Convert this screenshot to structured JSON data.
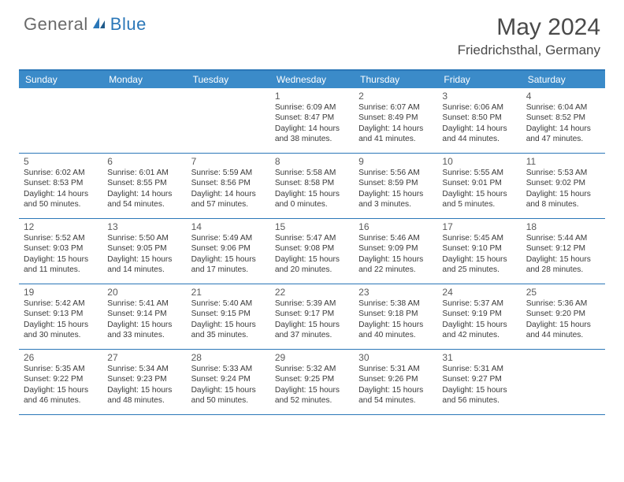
{
  "brand": {
    "general": "General",
    "blue": "Blue"
  },
  "title": "May 2024",
  "location": "Friedrichsthal, Germany",
  "colors": {
    "header_bg": "#3b8bc9",
    "border": "#2b77b8",
    "text_dark": "#3a3a3a",
    "text_gray": "#5a5a5a",
    "logo_gray": "#6a6a6a",
    "logo_blue": "#2b77b8"
  },
  "day_names": [
    "Sunday",
    "Monday",
    "Tuesday",
    "Wednesday",
    "Thursday",
    "Friday",
    "Saturday"
  ],
  "weeks": [
    [
      null,
      null,
      null,
      {
        "n": "1",
        "sr": "6:09 AM",
        "ss": "8:47 PM",
        "dl": "14 hours and 38 minutes."
      },
      {
        "n": "2",
        "sr": "6:07 AM",
        "ss": "8:49 PM",
        "dl": "14 hours and 41 minutes."
      },
      {
        "n": "3",
        "sr": "6:06 AM",
        "ss": "8:50 PM",
        "dl": "14 hours and 44 minutes."
      },
      {
        "n": "4",
        "sr": "6:04 AM",
        "ss": "8:52 PM",
        "dl": "14 hours and 47 minutes."
      }
    ],
    [
      {
        "n": "5",
        "sr": "6:02 AM",
        "ss": "8:53 PM",
        "dl": "14 hours and 50 minutes."
      },
      {
        "n": "6",
        "sr": "6:01 AM",
        "ss": "8:55 PM",
        "dl": "14 hours and 54 minutes."
      },
      {
        "n": "7",
        "sr": "5:59 AM",
        "ss": "8:56 PM",
        "dl": "14 hours and 57 minutes."
      },
      {
        "n": "8",
        "sr": "5:58 AM",
        "ss": "8:58 PM",
        "dl": "15 hours and 0 minutes."
      },
      {
        "n": "9",
        "sr": "5:56 AM",
        "ss": "8:59 PM",
        "dl": "15 hours and 3 minutes."
      },
      {
        "n": "10",
        "sr": "5:55 AM",
        "ss": "9:01 PM",
        "dl": "15 hours and 5 minutes."
      },
      {
        "n": "11",
        "sr": "5:53 AM",
        "ss": "9:02 PM",
        "dl": "15 hours and 8 minutes."
      }
    ],
    [
      {
        "n": "12",
        "sr": "5:52 AM",
        "ss": "9:03 PM",
        "dl": "15 hours and 11 minutes."
      },
      {
        "n": "13",
        "sr": "5:50 AM",
        "ss": "9:05 PM",
        "dl": "15 hours and 14 minutes."
      },
      {
        "n": "14",
        "sr": "5:49 AM",
        "ss": "9:06 PM",
        "dl": "15 hours and 17 minutes."
      },
      {
        "n": "15",
        "sr": "5:47 AM",
        "ss": "9:08 PM",
        "dl": "15 hours and 20 minutes."
      },
      {
        "n": "16",
        "sr": "5:46 AM",
        "ss": "9:09 PM",
        "dl": "15 hours and 22 minutes."
      },
      {
        "n": "17",
        "sr": "5:45 AM",
        "ss": "9:10 PM",
        "dl": "15 hours and 25 minutes."
      },
      {
        "n": "18",
        "sr": "5:44 AM",
        "ss": "9:12 PM",
        "dl": "15 hours and 28 minutes."
      }
    ],
    [
      {
        "n": "19",
        "sr": "5:42 AM",
        "ss": "9:13 PM",
        "dl": "15 hours and 30 minutes."
      },
      {
        "n": "20",
        "sr": "5:41 AM",
        "ss": "9:14 PM",
        "dl": "15 hours and 33 minutes."
      },
      {
        "n": "21",
        "sr": "5:40 AM",
        "ss": "9:15 PM",
        "dl": "15 hours and 35 minutes."
      },
      {
        "n": "22",
        "sr": "5:39 AM",
        "ss": "9:17 PM",
        "dl": "15 hours and 37 minutes."
      },
      {
        "n": "23",
        "sr": "5:38 AM",
        "ss": "9:18 PM",
        "dl": "15 hours and 40 minutes."
      },
      {
        "n": "24",
        "sr": "5:37 AM",
        "ss": "9:19 PM",
        "dl": "15 hours and 42 minutes."
      },
      {
        "n": "25",
        "sr": "5:36 AM",
        "ss": "9:20 PM",
        "dl": "15 hours and 44 minutes."
      }
    ],
    [
      {
        "n": "26",
        "sr": "5:35 AM",
        "ss": "9:22 PM",
        "dl": "15 hours and 46 minutes."
      },
      {
        "n": "27",
        "sr": "5:34 AM",
        "ss": "9:23 PM",
        "dl": "15 hours and 48 minutes."
      },
      {
        "n": "28",
        "sr": "5:33 AM",
        "ss": "9:24 PM",
        "dl": "15 hours and 50 minutes."
      },
      {
        "n": "29",
        "sr": "5:32 AM",
        "ss": "9:25 PM",
        "dl": "15 hours and 52 minutes."
      },
      {
        "n": "30",
        "sr": "5:31 AM",
        "ss": "9:26 PM",
        "dl": "15 hours and 54 minutes."
      },
      {
        "n": "31",
        "sr": "5:31 AM",
        "ss": "9:27 PM",
        "dl": "15 hours and 56 minutes."
      },
      null
    ]
  ],
  "labels": {
    "sunrise": "Sunrise:",
    "sunset": "Sunset:",
    "daylight": "Daylight:"
  }
}
